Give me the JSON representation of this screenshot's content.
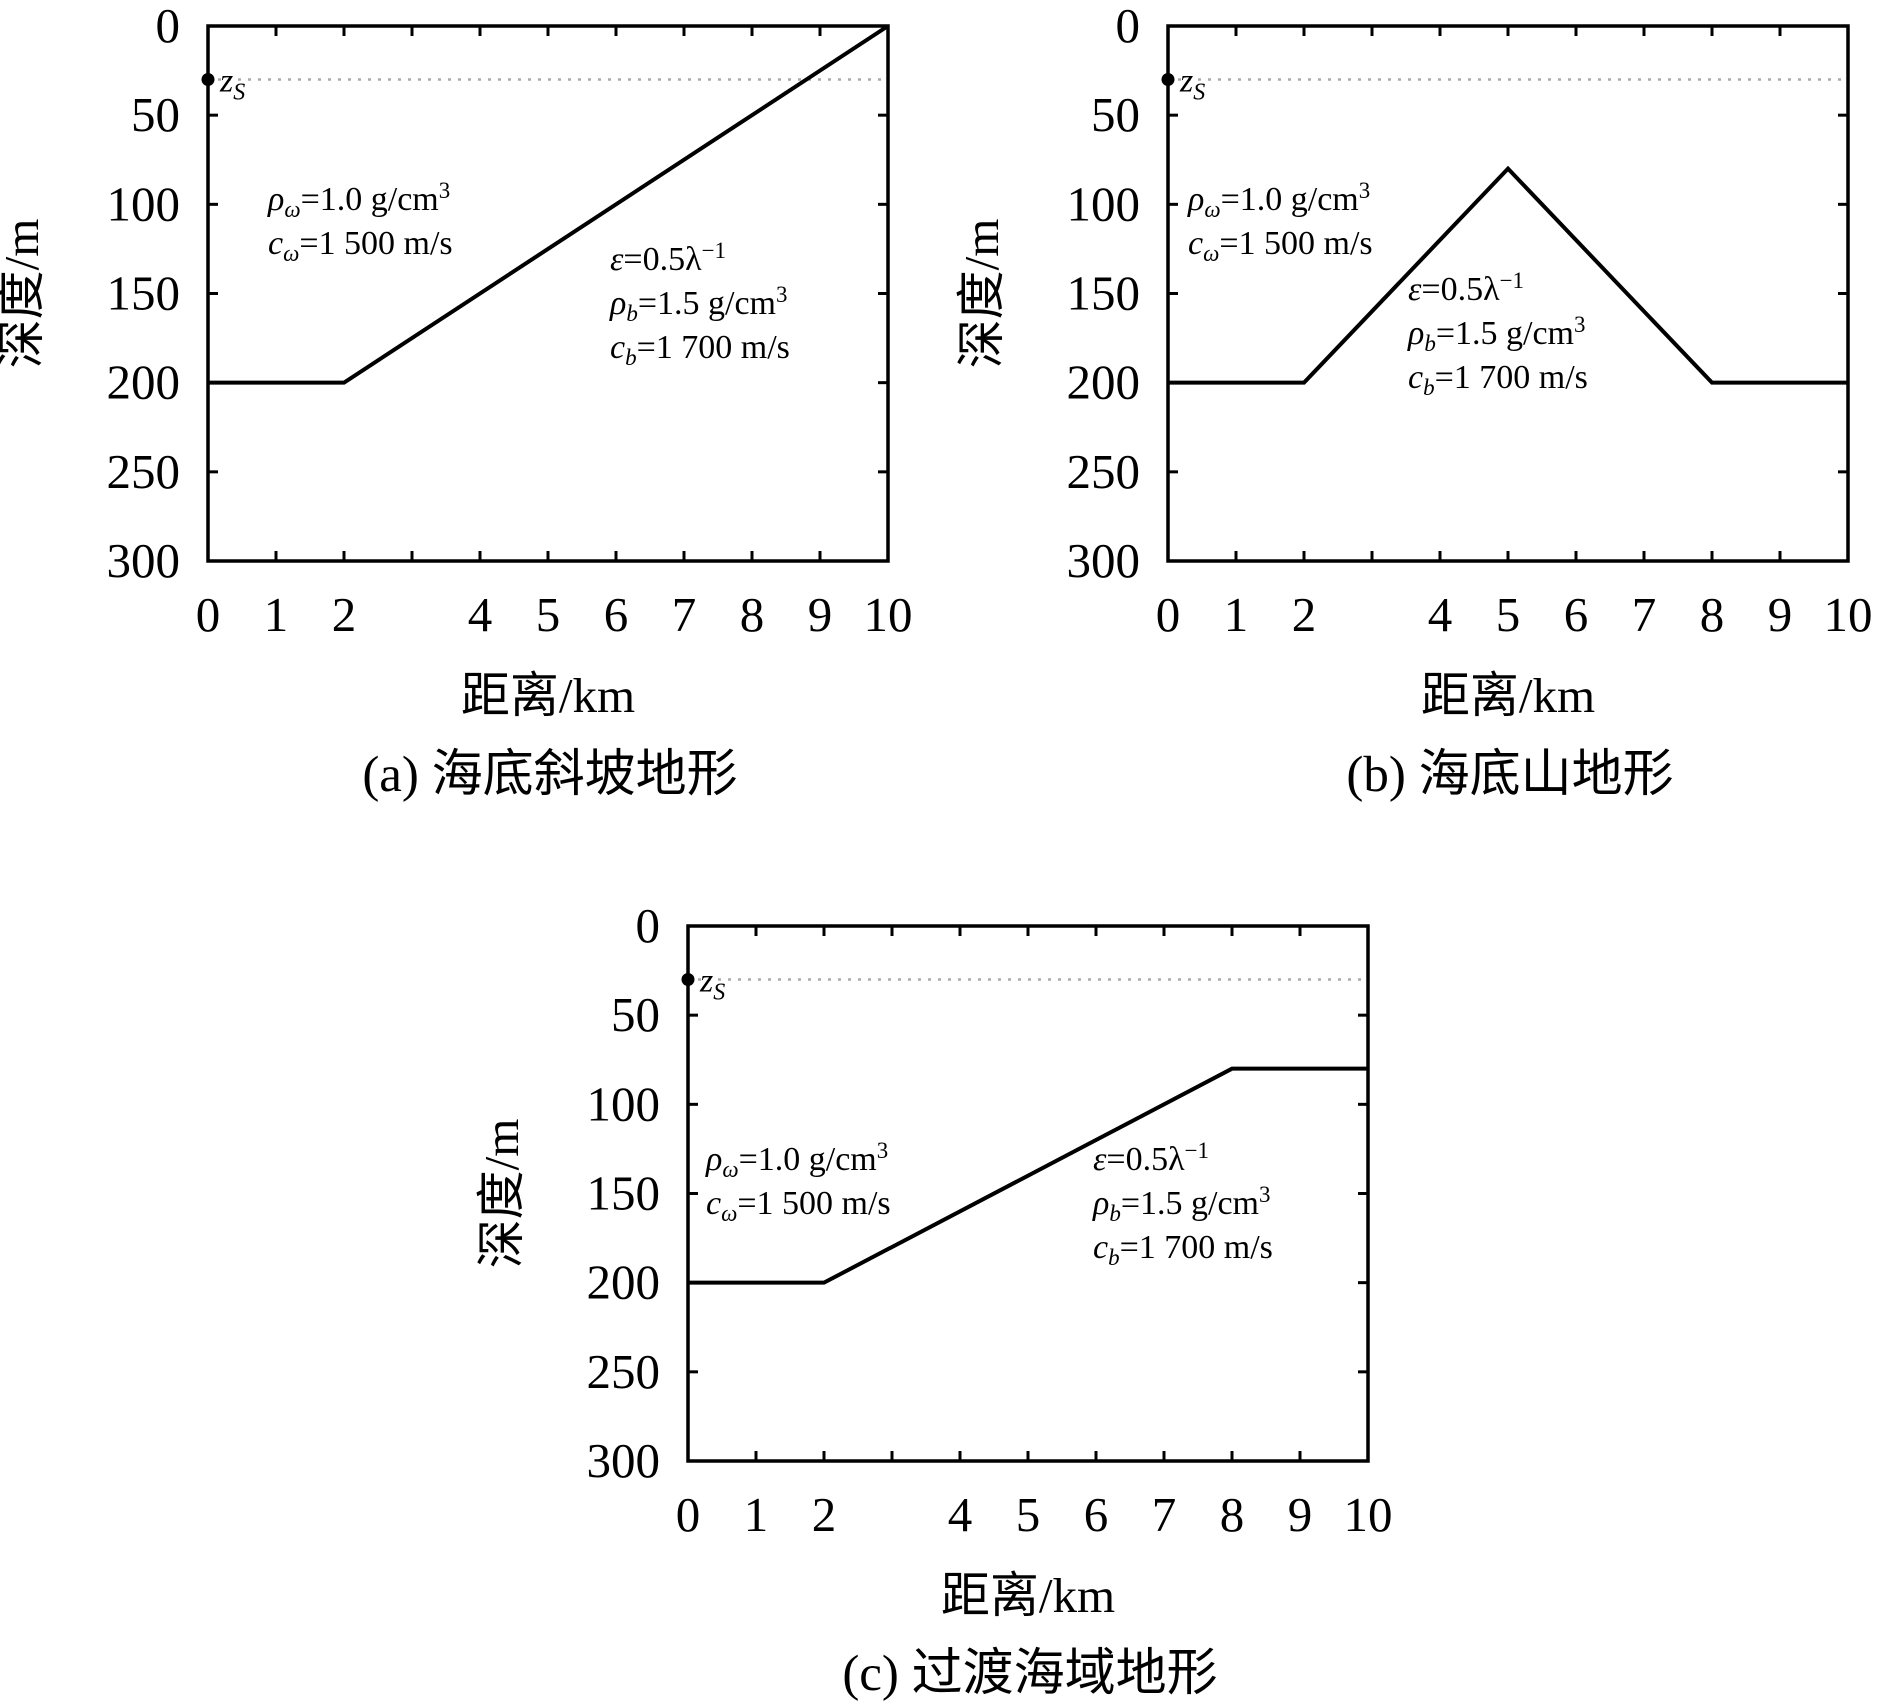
{
  "colors": {
    "seabed": "#000000",
    "source_line": "#aaaaaa",
    "axes": "#000000"
  },
  "chart_data": [
    {
      "type": "line",
      "caption": "(a) 海底斜坡地形",
      "xlabel": "距离/km",
      "ylabel": "深度/m",
      "xlim": [
        0,
        10
      ],
      "ylim": [
        0,
        300
      ],
      "y_inverted": true,
      "xticks": [
        "0",
        "1",
        "2",
        "4",
        "5",
        "6",
        "7",
        "8",
        "9",
        "10"
      ],
      "xtick_values": [
        0,
        1,
        2,
        4,
        5,
        6,
        7,
        8,
        9,
        10
      ],
      "yticks": [
        "0",
        "50",
        "100",
        "150",
        "200",
        "250",
        "300"
      ],
      "ytick_values": [
        0,
        50,
        100,
        150,
        200,
        250,
        300
      ],
      "source": {
        "label": "z",
        "sub": "S",
        "x": 0,
        "y": 30
      },
      "series": [
        {
          "x": [
            0,
            2,
            10
          ],
          "y": [
            200,
            200,
            0
          ]
        }
      ],
      "water_annotation": {
        "rho_sym": "ρ",
        "rho_sub": "ω",
        "rho_val": "=1.0 g/cm",
        "rho_sup": "3",
        "c_sym": "c",
        "c_sub": "ω",
        "c_val": "=1 500 m/s"
      },
      "bottom_annotation": {
        "eps_sym": "ε",
        "eps_val": "=0.5λ",
        "eps_sup": "−1",
        "rho_sym": "ρ",
        "rho_sub": "b",
        "rho_val": "=1.5 g/cm",
        "rho_sup": "3",
        "c_sym": "c",
        "c_sub": "b",
        "c_val": "=1 700 m/s"
      }
    },
    {
      "type": "line",
      "caption": "(b) 海底山地形",
      "xlabel": "距离/km",
      "ylabel": "深度/m",
      "xlim": [
        0,
        10
      ],
      "ylim": [
        0,
        300
      ],
      "y_inverted": true,
      "xticks": [
        "0",
        "1",
        "2",
        "4",
        "5",
        "6",
        "7",
        "8",
        "9",
        "10"
      ],
      "xtick_values": [
        0,
        1,
        2,
        4,
        5,
        6,
        7,
        8,
        9,
        10
      ],
      "yticks": [
        "0",
        "50",
        "100",
        "150",
        "200",
        "250",
        "300"
      ],
      "ytick_values": [
        0,
        50,
        100,
        150,
        200,
        250,
        300
      ],
      "source": {
        "label": "z",
        "sub": "S",
        "x": 0,
        "y": 30
      },
      "series": [
        {
          "x": [
            0,
            2,
            5,
            8,
            10
          ],
          "y": [
            200,
            200,
            80,
            200,
            200
          ]
        }
      ],
      "water_annotation": {
        "rho_sym": "ρ",
        "rho_sub": "ω",
        "rho_val": "=1.0 g/cm",
        "rho_sup": "3",
        "c_sym": "c",
        "c_sub": "ω",
        "c_val": "=1 500 m/s"
      },
      "bottom_annotation": {
        "eps_sym": "ε",
        "eps_val": "=0.5λ",
        "eps_sup": "−1",
        "rho_sym": "ρ",
        "rho_sub": "b",
        "rho_val": "=1.5 g/cm",
        "rho_sup": "3",
        "c_sym": "c",
        "c_sub": "b",
        "c_val": "=1 700 m/s"
      }
    },
    {
      "type": "line",
      "caption": "(c) 过渡海域地形",
      "xlabel": "距离/km",
      "ylabel": "深度/m",
      "xlim": [
        0,
        10
      ],
      "ylim": [
        0,
        300
      ],
      "y_inverted": true,
      "xticks": [
        "0",
        "1",
        "2",
        "4",
        "5",
        "6",
        "7",
        "8",
        "9",
        "10"
      ],
      "xtick_values": [
        0,
        1,
        2,
        4,
        5,
        6,
        7,
        8,
        9,
        10
      ],
      "yticks": [
        "0",
        "50",
        "100",
        "150",
        "200",
        "250",
        "300"
      ],
      "ytick_values": [
        0,
        50,
        100,
        150,
        200,
        250,
        300
      ],
      "source": {
        "label": "z",
        "sub": "S",
        "x": 0,
        "y": 30
      },
      "series": [
        {
          "x": [
            0,
            2,
            8,
            10
          ],
          "y": [
            200,
            200,
            80,
            80
          ]
        }
      ],
      "water_annotation": {
        "rho_sym": "ρ",
        "rho_sub": "ω",
        "rho_val": "=1.0 g/cm",
        "rho_sup": "3",
        "c_sym": "c",
        "c_sub": "ω",
        "c_val": "=1 500 m/s"
      },
      "bottom_annotation": {
        "eps_sym": "ε",
        "eps_val": "=0.5λ",
        "eps_sup": "−1",
        "rho_sym": "ρ",
        "rho_sub": "b",
        "rho_val": "=1.5 g/cm",
        "rho_sup": "3",
        "c_sym": "c",
        "c_sub": "b",
        "c_val": "=1 700 m/s"
      }
    }
  ]
}
